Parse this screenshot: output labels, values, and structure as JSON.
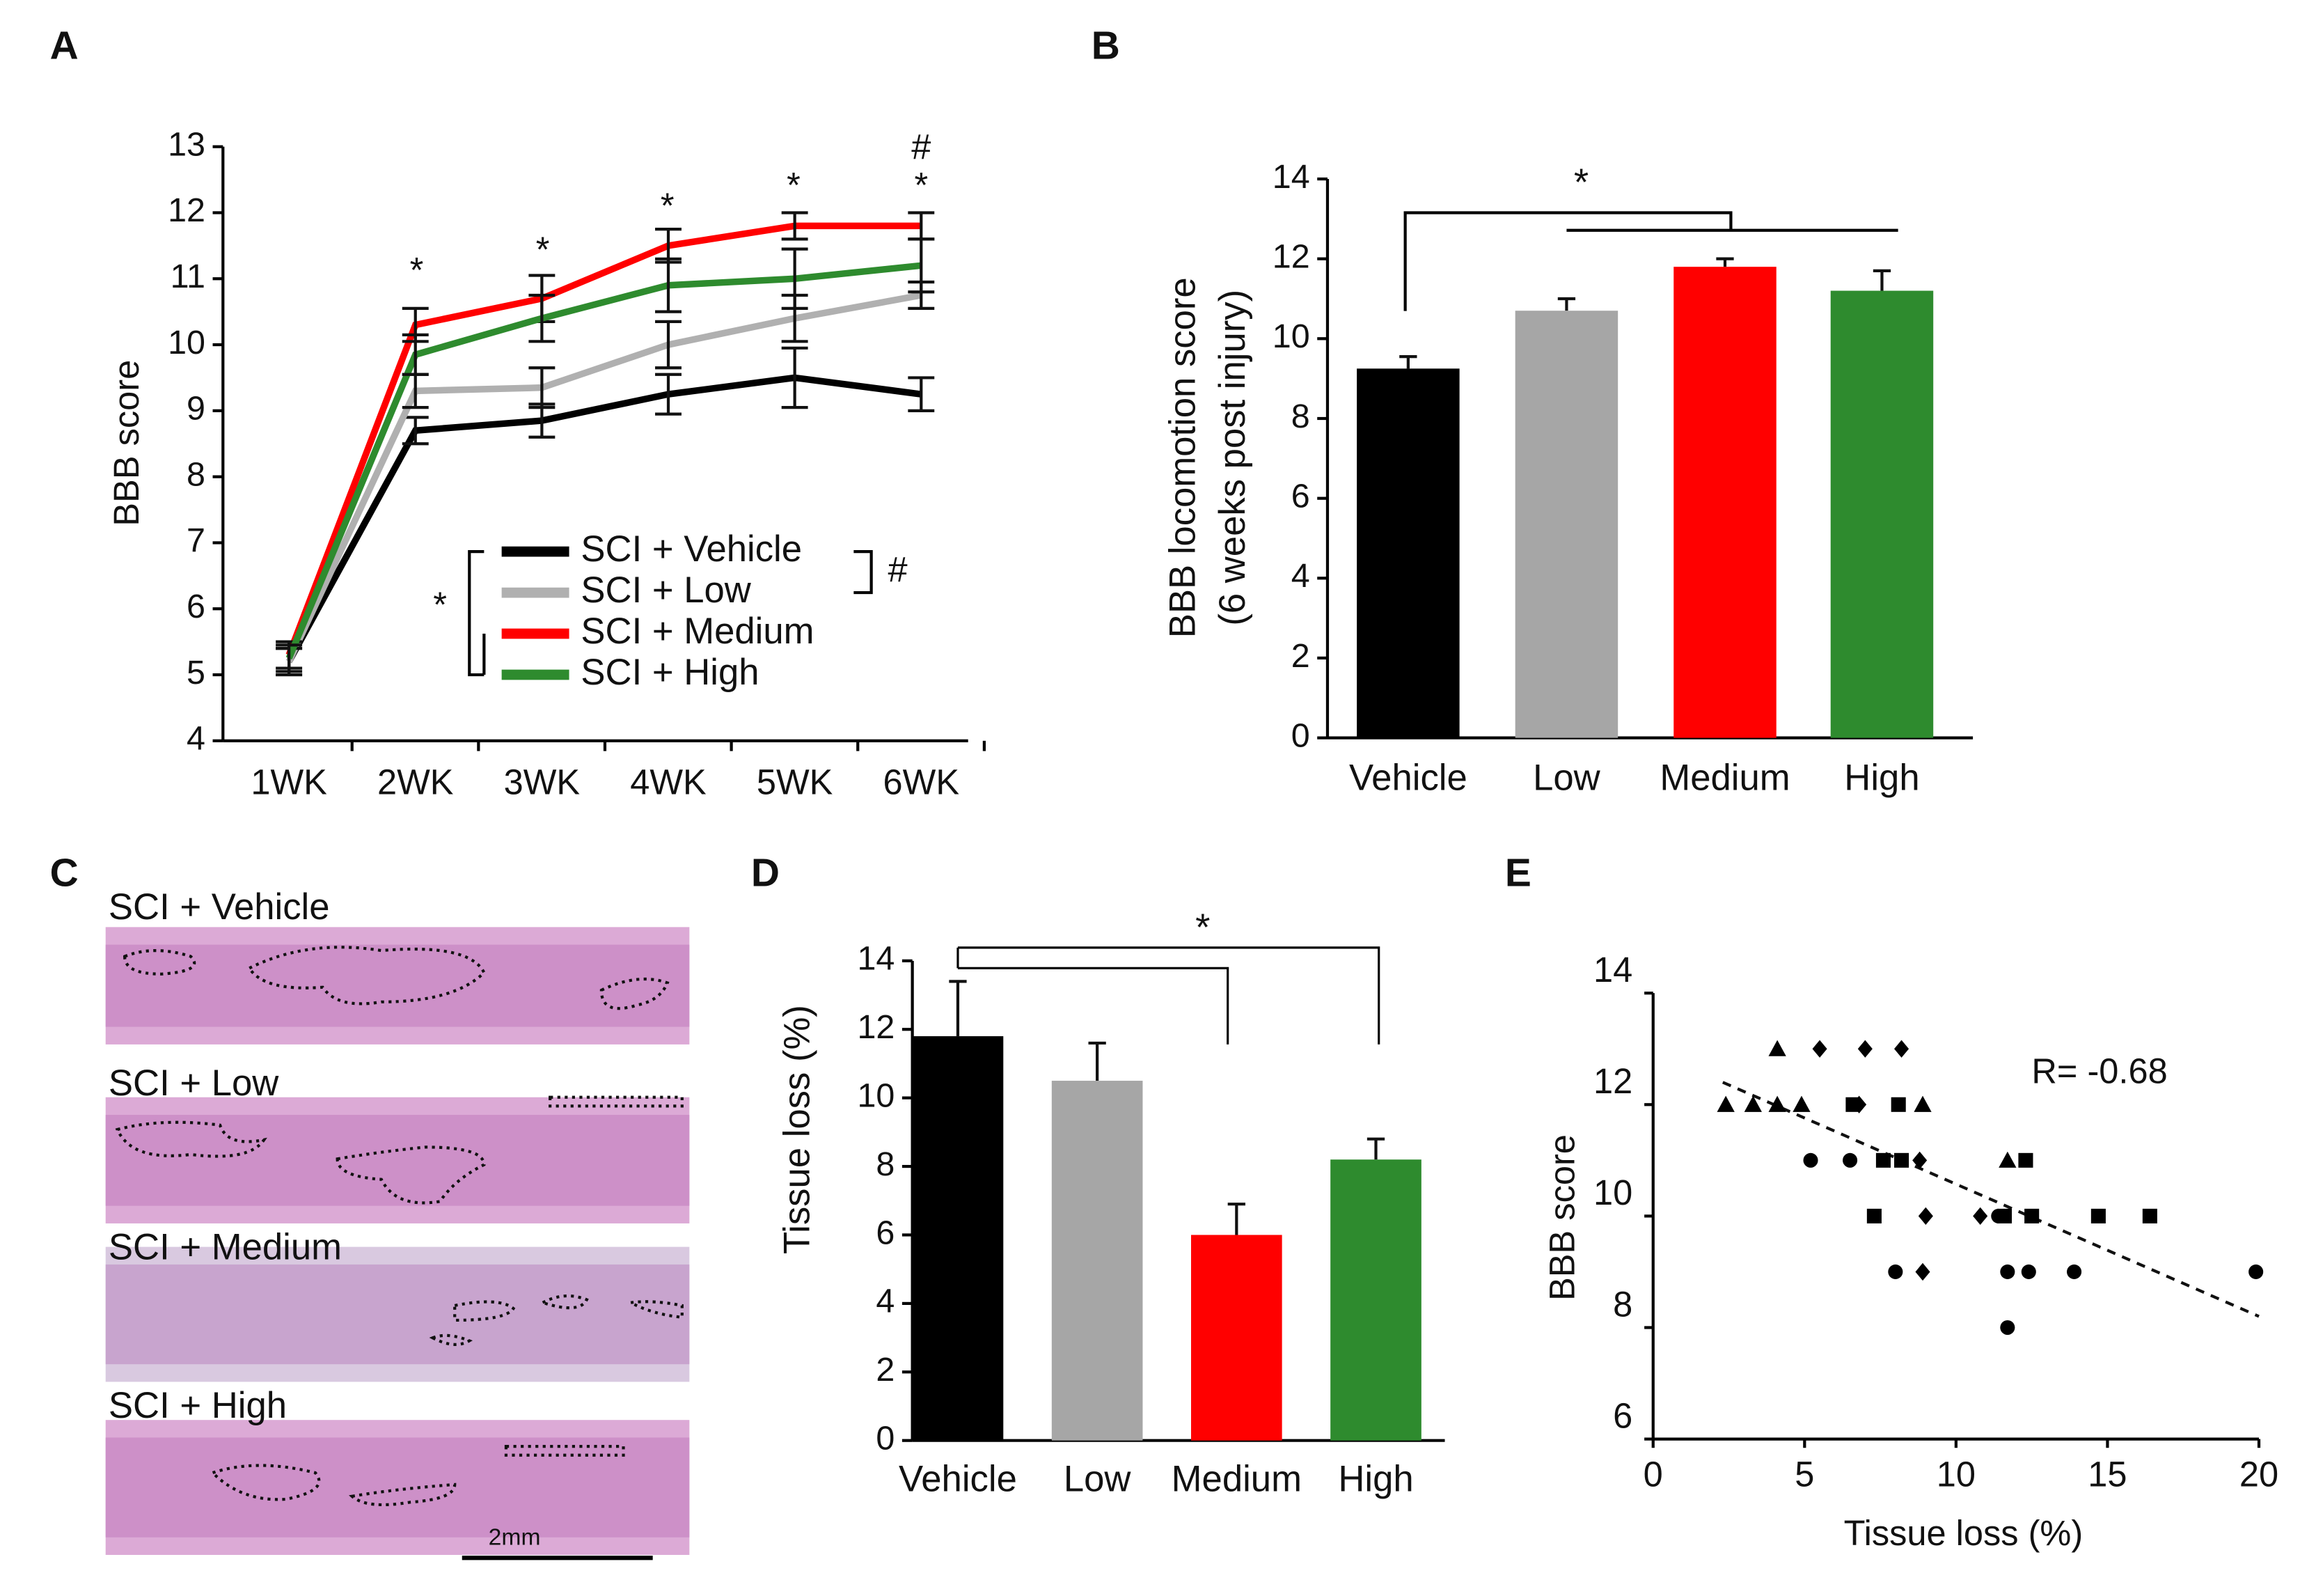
{
  "chart_data": [
    {
      "type": "line",
      "panel": "A",
      "ylabel": "BBB score",
      "categories": [
        "1WK",
        "2WK",
        "3WK",
        "4WK",
        "5WK",
        "6WK"
      ],
      "ylim": [
        4,
        13
      ],
      "yticks": [
        4,
        5,
        6,
        7,
        8,
        9,
        10,
        11,
        12,
        13
      ],
      "series": [
        {
          "name": "SCI + Vehicle",
          "color": "#000000",
          "values": [
            5.2,
            8.7,
            8.85,
            9.25,
            9.5,
            9.25
          ],
          "errors": [
            0.2,
            0.2,
            0.25,
            0.3,
            0.45,
            0.25
          ]
        },
        {
          "name": "SCI + Low",
          "color": "#b0b0b0",
          "values": [
            5.2,
            9.3,
            9.35,
            10.0,
            10.4,
            10.75
          ],
          "errors": [
            0.2,
            0.25,
            0.3,
            0.35,
            0.35,
            0.2
          ]
        },
        {
          "name": "SCI + Medium",
          "color": "#ff0000",
          "values": [
            5.3,
            10.3,
            10.7,
            11.5,
            11.8,
            11.8
          ],
          "errors": [
            0.2,
            0.25,
            0.35,
            0.25,
            0.2,
            0.2
          ]
        },
        {
          "name": "SCI + High",
          "color": "#2e8b2e",
          "values": [
            5.25,
            9.85,
            10.4,
            10.9,
            11.0,
            11.2
          ],
          "errors": [
            0.2,
            0.3,
            0.35,
            0.4,
            0.45,
            0.4
          ]
        }
      ],
      "annotations": [
        "*",
        "*",
        "*",
        "*",
        "*",
        "#"
      ],
      "legend_annotations": [
        "*",
        "#"
      ]
    },
    {
      "type": "bar",
      "panel": "B",
      "ylabel": [
        "BBB locomotion score",
        "(6 weeks post injury)"
      ],
      "categories": [
        "Vehicle",
        "Low",
        "Medium",
        "High"
      ],
      "values": [
        9.25,
        10.7,
        11.8,
        11.2
      ],
      "errors": [
        0.3,
        0.3,
        0.2,
        0.5
      ],
      "colors": [
        "#000000",
        "#a6a6a6",
        "#ff0000",
        "#2e8b2e"
      ],
      "ylim": [
        0,
        14
      ],
      "yticks": [
        0,
        2,
        4,
        6,
        8,
        10,
        12,
        14
      ],
      "annotations": [
        "*"
      ]
    },
    {
      "type": "image",
      "panel": "C",
      "labels": [
        "SCI + Vehicle",
        "SCI + Low",
        "SCI + Medium",
        "SCI + High"
      ],
      "scale_bar": "2mm"
    },
    {
      "type": "bar",
      "panel": "D",
      "ylabel": "Tissue loss (%)",
      "categories": [
        "Vehicle",
        "Low",
        "Medium",
        "High"
      ],
      "values": [
        11.8,
        10.5,
        6.0,
        8.2
      ],
      "errors": [
        1.6,
        1.1,
        0.9,
        0.6
      ],
      "colors": [
        "#000000",
        "#a6a6a6",
        "#ff0000",
        "#2e8b2e"
      ],
      "ylim": [
        0,
        14
      ],
      "yticks": [
        0,
        2,
        4,
        6,
        8,
        10,
        12,
        14
      ],
      "annotations": [
        "*"
      ]
    },
    {
      "type": "scatter",
      "panel": "E",
      "xlabel": "Tissue loss (%)",
      "ylabel": "BBB score",
      "xlim": [
        0,
        20
      ],
      "xticks": [
        0,
        5,
        10,
        15,
        20
      ],
      "ylim": [
        6,
        14
      ],
      "yticks": [
        6,
        8,
        10,
        12,
        14
      ],
      "series": [
        {
          "marker": "triangle",
          "x": [
            4.1,
            2.4,
            3.3,
            4.1,
            4.9,
            8.9,
            11.7
          ],
          "y": [
            13,
            12,
            12,
            12,
            12,
            12,
            11
          ]
        },
        {
          "marker": "diamond",
          "x": [
            5.5,
            7.0,
            8.2,
            6.8,
            8.8,
            9.0,
            10.8,
            8.9
          ],
          "y": [
            13,
            13,
            13,
            12,
            11,
            10,
            10,
            9
          ]
        },
        {
          "marker": "square",
          "x": [
            6.6,
            8.1,
            7.6,
            8.2,
            12.3,
            7.3,
            11.6,
            12.5,
            14.7,
            16.4
          ],
          "y": [
            12,
            12,
            11,
            11,
            11,
            10,
            10,
            10,
            10,
            10
          ]
        },
        {
          "marker": "circle",
          "x": [
            5.2,
            6.5,
            11.4,
            8.0,
            11.7,
            12.4,
            13.9,
            19.9,
            11.7
          ],
          "y": [
            11,
            11,
            10,
            9,
            9,
            9,
            9,
            9,
            8
          ]
        }
      ],
      "trend_line": {
        "x": [
          2.3,
          20
        ],
        "y": [
          12.4,
          8.2
        ]
      },
      "annotations": [
        "R= -0.68"
      ]
    }
  ]
}
